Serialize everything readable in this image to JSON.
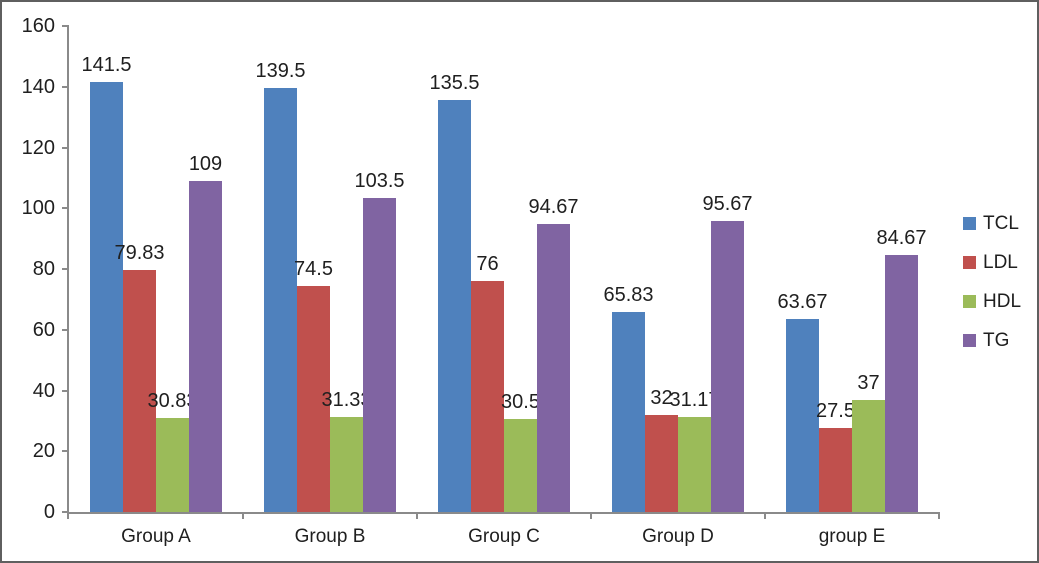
{
  "chart_data": {
    "type": "bar",
    "title": "",
    "xlabel": "",
    "ylabel": "",
    "grid": false,
    "categories": [
      "Group A",
      "Group B",
      "Group C",
      "Group D",
      "group E"
    ],
    "series": [
      {
        "name": "TCL",
        "color": "#4F81BD",
        "values": [
          141.5,
          139.5,
          135.5,
          65.83,
          63.67
        ],
        "labels": [
          "141.5",
          "139.5",
          "135.5",
          "65.83",
          "63.67"
        ]
      },
      {
        "name": "LDL",
        "color": "#C0504D",
        "values": [
          79.83,
          74.5,
          76,
          32,
          27.5
        ],
        "labels": [
          "79.83",
          "74.5",
          "76",
          "32",
          "27.5"
        ]
      },
      {
        "name": "HDL",
        "color": "#9BBB59",
        "values": [
          30.83,
          31.33,
          30.5,
          31.17,
          37
        ],
        "labels": [
          "30.83",
          "31.33",
          "30.5",
          "31.17",
          "37"
        ]
      },
      {
        "name": "TG",
        "color": "#8064A2",
        "values": [
          109,
          103.5,
          94.67,
          95.67,
          84.67
        ],
        "labels": [
          "109",
          "103.5",
          "94.67",
          "95.67",
          "84.67"
        ]
      }
    ],
    "y_axis": {
      "min": 0,
      "max": 160,
      "step": 20,
      "tick_labels": [
        "0",
        "20",
        "40",
        "60",
        "80",
        "100",
        "120",
        "140",
        "160"
      ]
    },
    "legend": {
      "position": "right",
      "entries": [
        "TCL",
        "LDL",
        "HDL",
        "TG"
      ]
    }
  },
  "colors": {
    "tcl_blue": "#4F81BD",
    "ldl_red": "#C0504D",
    "hdl_green": "#9BBB59",
    "tg_purple": "#8064A2",
    "axis_line": "#8A8A8A",
    "frame_border": "#5F5F5F",
    "text": "#1F1F1F",
    "background": "#FFFFFF"
  }
}
